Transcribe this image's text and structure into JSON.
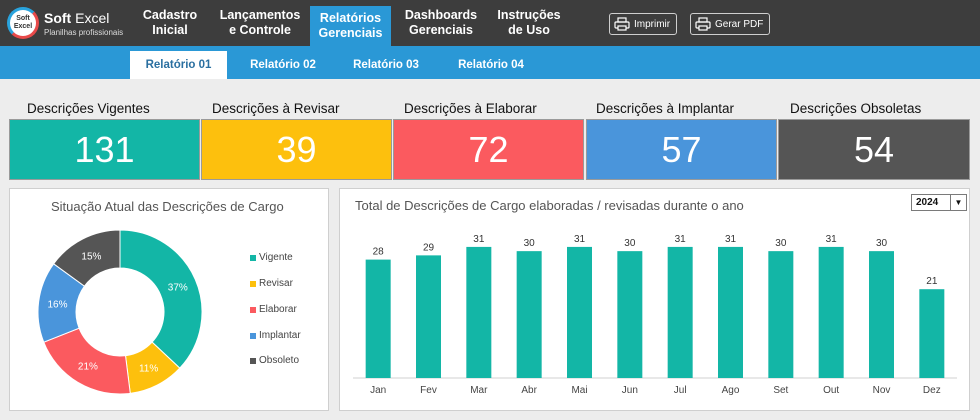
{
  "brand": {
    "badge_top": "Soft",
    "badge_bottom": "Excel",
    "name_bold": "Soft",
    "name_rest": " Excel",
    "tagline": "Planilhas profissionais"
  },
  "nav": [
    {
      "label": "Cadastro\nInicial",
      "active": false
    },
    {
      "label": "Lançamentos\ne Controle",
      "active": false
    },
    {
      "label": "Relatórios\nGerenciais",
      "active": true
    },
    {
      "label": "Dashboards\nGerenciais",
      "active": false
    },
    {
      "label": "Instruções\nde Uso",
      "active": false
    }
  ],
  "toolbar": {
    "print_label": "Imprimir",
    "pdf_label": "Gerar PDF"
  },
  "subtabs": [
    {
      "label": "Relatório 01",
      "active": true
    },
    {
      "label": "Relatório 02",
      "active": false
    },
    {
      "label": "Relatório 03",
      "active": false
    },
    {
      "label": "Relatório 04",
      "active": false
    }
  ],
  "kpis": [
    {
      "label": "Descrições Vigentes",
      "value": "131",
      "color": "#13b6a6",
      "text_color": "#ffffff"
    },
    {
      "label": "Descrições à Revisar",
      "value": "39",
      "color": "#fdc00d",
      "text_color": "#ffffff"
    },
    {
      "label": "Descrições à Elaborar",
      "value": "72",
      "color": "#fb5a5f",
      "text_color": "#ffffff"
    },
    {
      "label": "Descrições à Implantar",
      "value": "57",
      "color": "#4a95db",
      "text_color": "#ffffff"
    },
    {
      "label": "Descrições Obsoletas",
      "value": "54",
      "color": "#555555",
      "text_color": "#ffffff"
    }
  ],
  "year_select": {
    "value": "2024"
  },
  "chart_data": [
    {
      "type": "pie",
      "title": "Situação Atual das Descrições de Cargo",
      "categories": [
        "Vigente",
        "Revisar",
        "Elaborar",
        "Implantar",
        "Obsoleto"
      ],
      "values": [
        37,
        11,
        21,
        16,
        15
      ],
      "labels": [
        "37%",
        "11%",
        "21%",
        "16%",
        "15%"
      ],
      "colors": [
        "#13b6a6",
        "#fdc00d",
        "#fb5a5f",
        "#4a95db",
        "#555555"
      ],
      "donut": true,
      "legend": "right"
    },
    {
      "type": "bar",
      "title": "Total de Descrições de Cargo elaboradas / revisadas durante o ano",
      "categories": [
        "Jan",
        "Fev",
        "Mar",
        "Abr",
        "Mai",
        "Jun",
        "Jul",
        "Ago",
        "Set",
        "Out",
        "Nov",
        "Dez"
      ],
      "values": [
        28,
        29,
        31,
        30,
        31,
        30,
        31,
        31,
        30,
        31,
        30,
        21
      ],
      "color": "#13b6a6",
      "ylim": [
        0,
        35
      ],
      "grid": false
    }
  ]
}
